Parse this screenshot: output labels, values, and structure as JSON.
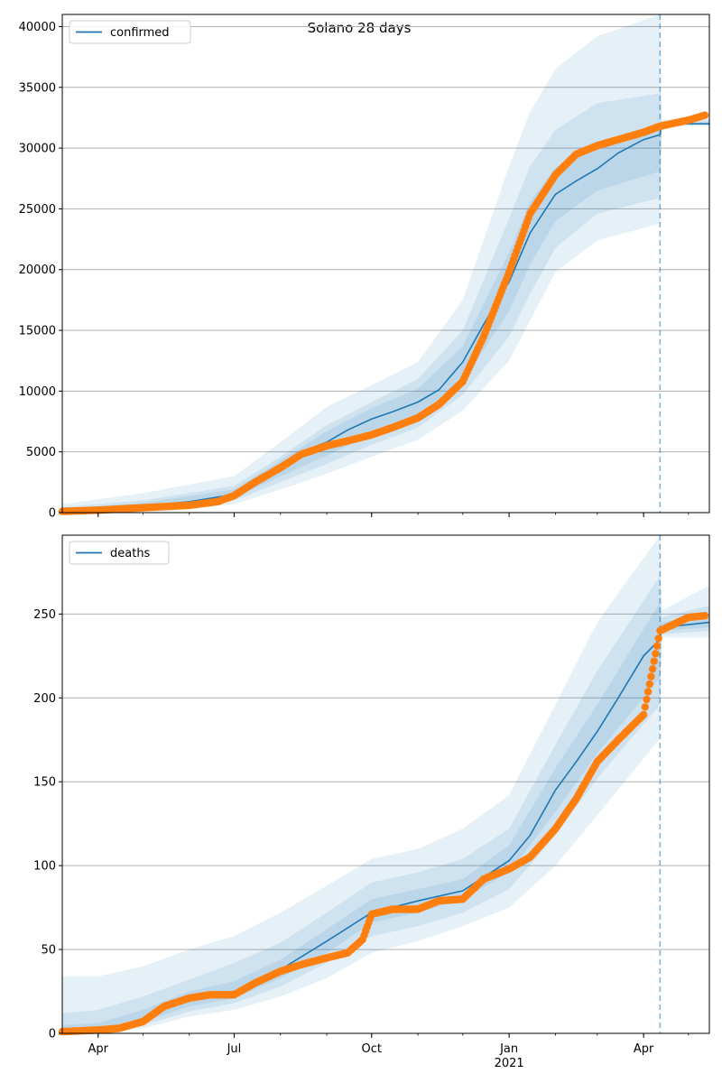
{
  "figure": {
    "title": "Solano 28 days",
    "forecast_start": "2021-04-12"
  },
  "colors": {
    "model_line": "#1f77b4",
    "observed_points": "#ff7f0e",
    "band": "#1f77b4",
    "grid": "#b0b0b0",
    "forecast_marker": "#1f77b4"
  },
  "x_axis": {
    "range": [
      "2020-03-08",
      "2021-05-15"
    ],
    "tick_labels": [
      {
        "date": "2020-04-01",
        "label": "Apr"
      },
      {
        "date": "2020-07-01",
        "label": "Jul"
      },
      {
        "date": "2020-10-01",
        "label": "Oct"
      },
      {
        "date": "2021-01-01",
        "label": "Jan"
      },
      {
        "date": "2021-04-01",
        "label": "Apr"
      }
    ],
    "year_label": {
      "date": "2021-01-01",
      "label": "2021"
    }
  },
  "chart_data": [
    {
      "type": "line",
      "legend": "confirmed",
      "legend_position": "top-left",
      "grid": "horizontal",
      "ylim": [
        0,
        41000
      ],
      "yticks": [
        0,
        5000,
        10000,
        15000,
        20000,
        25000,
        30000,
        35000,
        40000
      ],
      "model": {
        "x": [
          "2020-03-08",
          "2020-04-01",
          "2020-05-01",
          "2020-06-01",
          "2020-07-01",
          "2020-07-15",
          "2020-08-01",
          "2020-08-15",
          "2020-09-01",
          "2020-09-15",
          "2020-10-01",
          "2020-10-15",
          "2020-11-01",
          "2020-11-15",
          "2020-12-01",
          "2020-12-15",
          "2021-01-01",
          "2021-01-15",
          "2021-02-01",
          "2021-02-15",
          "2021-03-01",
          "2021-03-15",
          "2021-04-01",
          "2021-04-12",
          "2021-04-13",
          "2021-05-15"
        ],
        "y": [
          100,
          180,
          550,
          900,
          1500,
          2600,
          3800,
          5000,
          5800,
          6800,
          7700,
          8300,
          9100,
          10100,
          12400,
          15500,
          19000,
          23000,
          26200,
          27300,
          28300,
          29600,
          30700,
          31100,
          32000,
          32000
        ]
      },
      "bands": [
        {
          "x": [
            "2020-03-08",
            "2020-05-01",
            "2020-07-01",
            "2020-08-01",
            "2020-09-01",
            "2020-10-01",
            "2020-11-01",
            "2020-12-01",
            "2021-01-01",
            "2021-01-15",
            "2021-02-01",
            "2021-03-01",
            "2021-04-12",
            "2021-04-13",
            "2021-05-15"
          ],
          "lower": [
            0,
            100,
            700,
            1900,
            3200,
            4600,
            6000,
            8400,
            12500,
            15800,
            19800,
            22400,
            23800,
            31800,
            31800
          ],
          "upper": [
            700,
            1600,
            3000,
            5800,
            8700,
            10500,
            12400,
            17500,
            28500,
            33000,
            36500,
            39200,
            41000,
            32300,
            32500
          ]
        },
        {
          "x": [
            "2020-03-08",
            "2020-05-01",
            "2020-07-01",
            "2020-08-01",
            "2020-09-01",
            "2020-10-01",
            "2020-11-01",
            "2020-12-01",
            "2021-01-01",
            "2021-01-15",
            "2021-02-01",
            "2021-03-01",
            "2021-04-12",
            "2021-04-13",
            "2021-05-15"
          ],
          "lower": [
            0,
            300,
            1000,
            2500,
            4000,
            5600,
            7000,
            9700,
            14500,
            18000,
            21800,
            24600,
            25900,
            31900,
            31900
          ],
          "upper": [
            450,
            1000,
            2200,
            4600,
            7200,
            9100,
            11000,
            15000,
            24200,
            28500,
            31500,
            33700,
            34500,
            32200,
            32300
          ]
        },
        {
          "x": [
            "2020-03-08",
            "2020-05-01",
            "2020-07-01",
            "2020-08-01",
            "2020-09-01",
            "2020-10-01",
            "2020-11-01",
            "2020-12-01",
            "2021-01-01",
            "2021-01-15",
            "2021-02-01",
            "2021-03-01",
            "2021-04-12",
            "2021-04-13",
            "2021-05-15"
          ],
          "lower": [
            20,
            400,
            1200,
            3000,
            4700,
            6500,
            8000,
            10800,
            16600,
            20400,
            24000,
            26500,
            28100,
            31950,
            31950
          ],
          "upper": [
            300,
            800,
            1900,
            4300,
            6700,
            8600,
            10200,
            13700,
            21400,
            25600,
            28400,
            30200,
            31600,
            32100,
            32150
          ]
        }
      ],
      "observed": {
        "x": [
          "2020-03-08",
          "2020-04-01",
          "2020-05-01",
          "2020-06-01",
          "2020-06-20",
          "2020-07-01",
          "2020-07-15",
          "2020-08-01",
          "2020-08-15",
          "2020-09-01",
          "2020-09-15",
          "2020-10-01",
          "2020-10-15",
          "2020-11-01",
          "2020-11-15",
          "2020-12-01",
          "2020-12-15",
          "2021-01-01",
          "2021-01-15",
          "2021-02-01",
          "2021-02-15",
          "2021-03-01",
          "2021-03-15",
          "2021-04-01",
          "2021-04-12",
          "2021-05-01",
          "2021-05-12"
        ],
        "y": [
          100,
          200,
          400,
          600,
          900,
          1400,
          2500,
          3700,
          4800,
          5500,
          5900,
          6400,
          7000,
          7800,
          8900,
          10800,
          14500,
          19800,
          24600,
          27800,
          29500,
          30200,
          30700,
          31300,
          31800,
          32300,
          32700
        ]
      }
    },
    {
      "type": "line",
      "legend": "deaths",
      "legend_position": "top-left",
      "grid": "horizontal",
      "ylim": [
        0,
        297
      ],
      "yticks": [
        0,
        50,
        100,
        150,
        200,
        250
      ],
      "model": {
        "x": [
          "2020-03-08",
          "2020-04-01",
          "2020-04-15",
          "2020-05-01",
          "2020-05-15",
          "2020-06-01",
          "2020-07-01",
          "2020-08-01",
          "2020-09-01",
          "2020-10-01",
          "2020-11-01",
          "2020-12-01",
          "2021-01-01",
          "2021-01-15",
          "2021-02-01",
          "2021-02-15",
          "2021-03-01",
          "2021-03-15",
          "2021-04-01",
          "2021-04-12",
          "2021-04-13",
          "2021-05-15"
        ],
        "y": [
          1,
          2,
          4,
          9,
          17,
          20,
          25,
          38,
          55,
          72,
          79,
          85,
          103,
          118,
          145,
          162,
          180,
          200,
          225,
          235,
          242,
          245
        ]
      },
      "bands": [
        {
          "x": [
            "2020-03-08",
            "2020-04-01",
            "2020-05-01",
            "2020-06-01",
            "2020-07-01",
            "2020-08-01",
            "2020-09-01",
            "2020-10-01",
            "2020-11-01",
            "2020-12-01",
            "2021-01-01",
            "2021-02-01",
            "2021-03-01",
            "2021-04-12",
            "2021-04-13",
            "2021-05-15"
          ],
          "lower": [
            0,
            0,
            3,
            10,
            14,
            22,
            33,
            48,
            55,
            64,
            75,
            100,
            130,
            176,
            236,
            236
          ],
          "upper": [
            34,
            34,
            40,
            50,
            58,
            72,
            88,
            104,
            110,
            122,
            142,
            196,
            245,
            297,
            252,
            267
          ]
        },
        {
          "x": [
            "2020-03-08",
            "2020-04-01",
            "2020-05-01",
            "2020-06-01",
            "2020-07-01",
            "2020-08-01",
            "2020-09-01",
            "2020-10-01",
            "2020-11-01",
            "2020-12-01",
            "2021-01-01",
            "2021-02-01",
            "2021-03-01",
            "2021-04-12",
            "2021-04-13",
            "2021-05-15"
          ],
          "lower": [
            0,
            1,
            5,
            13,
            18,
            28,
            42,
            58,
            64,
            72,
            86,
            118,
            152,
            196,
            238,
            240
          ],
          "upper": [
            12,
            14,
            22,
            32,
            42,
            54,
            72,
            90,
            96,
            104,
            122,
            172,
            216,
            273,
            248,
            255
          ]
        },
        {
          "x": [
            "2020-03-08",
            "2020-04-01",
            "2020-05-01",
            "2020-06-01",
            "2020-07-01",
            "2020-08-01",
            "2020-09-01",
            "2020-10-01",
            "2020-11-01",
            "2020-12-01",
            "2021-01-01",
            "2021-02-01",
            "2021-03-01",
            "2021-04-12",
            "2021-04-13",
            "2021-05-15"
          ],
          "lower": [
            0,
            1,
            7,
            16,
            21,
            33,
            48,
            66,
            72,
            80,
            96,
            132,
            167,
            212,
            240,
            242
          ],
          "upper": [
            5,
            6,
            14,
            25,
            31,
            44,
            62,
            80,
            86,
            92,
            112,
            158,
            196,
            257,
            245,
            250
          ]
        }
      ],
      "observed": {
        "x": [
          "2020-03-08",
          "2020-04-01",
          "2020-04-15",
          "2020-05-01",
          "2020-05-15",
          "2020-06-01",
          "2020-06-15",
          "2020-07-01",
          "2020-07-15",
          "2020-08-01",
          "2020-08-15",
          "2020-09-01",
          "2020-09-15",
          "2020-09-25",
          "2020-10-01",
          "2020-10-15",
          "2020-11-01",
          "2020-11-15",
          "2020-12-01",
          "2020-12-15",
          "2021-01-01",
          "2021-01-15",
          "2021-02-01",
          "2021-02-15",
          "2021-03-01",
          "2021-03-15",
          "2021-04-01",
          "2021-04-12",
          "2021-05-01",
          "2021-05-12"
        ],
        "y": [
          1,
          2,
          3,
          7,
          16,
          21,
          23,
          23,
          30,
          37,
          41,
          45,
          48,
          56,
          71,
          74,
          74,
          79,
          80,
          92,
          98,
          105,
          122,
          140,
          162,
          175,
          190,
          240,
          248,
          249
        ]
      }
    }
  ]
}
